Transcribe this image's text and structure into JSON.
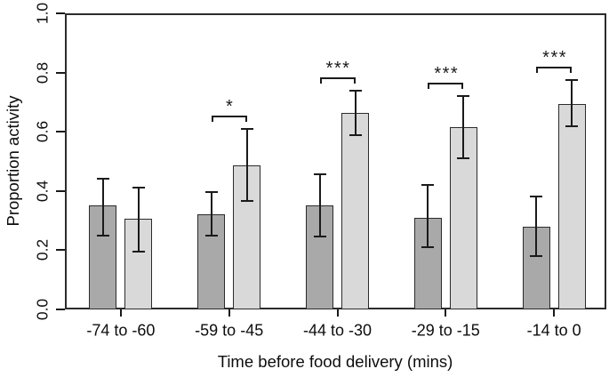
{
  "chart_data": {
    "type": "bar",
    "title": "",
    "xlabel": "Time before food delivery (mins)",
    "ylabel": "Proportion activity",
    "ylim": [
      0,
      1.0
    ],
    "ytick_labels": [
      "0.0",
      "0.2",
      "0.4",
      "0.6",
      "0.8",
      "1.0"
    ],
    "categories": [
      "-74 to -60",
      "-59 to -45",
      "-44 to -30",
      "-29 to -15",
      "-14 to 0"
    ],
    "series": [
      {
        "name": "dark-grey-bars",
        "color": "#a9a9a9",
        "values": [
          0.35,
          0.32,
          0.35,
          0.31,
          0.28
        ],
        "error_low": [
          0.25,
          0.25,
          0.245,
          0.21,
          0.18
        ],
        "error_high": [
          0.44,
          0.395,
          0.455,
          0.42,
          0.38
        ]
      },
      {
        "name": "light-grey-bars",
        "color": "#d9d9d9",
        "values": [
          0.305,
          0.485,
          0.665,
          0.615,
          0.695
        ],
        "error_low": [
          0.195,
          0.365,
          0.59,
          0.51,
          0.62
        ],
        "error_high": [
          0.41,
          0.61,
          0.74,
          0.72,
          0.775
        ]
      }
    ],
    "significance": [
      {
        "category": "-59 to -45",
        "category_index": 1,
        "label": "*"
      },
      {
        "category": "-44 to -30",
        "category_index": 2,
        "label": "***"
      },
      {
        "category": "-29 to -15",
        "category_index": 3,
        "label": "***"
      },
      {
        "category": "-14 to 0",
        "category_index": 4,
        "label": "***"
      }
    ],
    "grid": false,
    "legend_position": "none",
    "colors": {
      "bar_dark": "#a9a9a9",
      "bar_light": "#d9d9d9",
      "bar_border": "#2b2b2b",
      "axis": "#2b2b2b",
      "error_bar": "#1a1a1a",
      "text": "#0d0d0d",
      "background": "#ffffff"
    }
  }
}
